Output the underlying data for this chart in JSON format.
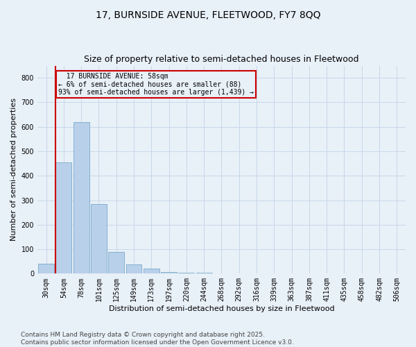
{
  "title1": "17, BURNSIDE AVENUE, FLEETWOOD, FY7 8QQ",
  "title2": "Size of property relative to semi-detached houses in Fleetwood",
  "xlabel": "Distribution of semi-detached houses by size in Fleetwood",
  "ylabel": "Number of semi-detached properties",
  "categories": [
    "30sqm",
    "54sqm",
    "78sqm",
    "101sqm",
    "125sqm",
    "149sqm",
    "173sqm",
    "197sqm",
    "220sqm",
    "244sqm",
    "268sqm",
    "292sqm",
    "316sqm",
    "339sqm",
    "363sqm",
    "387sqm",
    "411sqm",
    "435sqm",
    "458sqm",
    "482sqm",
    "506sqm"
  ],
  "values": [
    40,
    455,
    620,
    285,
    90,
    37,
    20,
    8,
    5,
    3,
    0,
    0,
    0,
    0,
    0,
    0,
    0,
    0,
    0,
    0,
    0
  ],
  "bar_color": "#b8d0ea",
  "bar_edge_color": "#7aaac8",
  "property_line_bin": 1,
  "property_label": "17 BURNSIDE AVENUE: 58sqm",
  "smaller_pct": "6%",
  "smaller_n": 88,
  "larger_pct": "93%",
  "larger_n": 1439,
  "annotation_box_color": "#cc0000",
  "line_color": "#cc0000",
  "ylim": [
    0,
    850
  ],
  "yticks": [
    0,
    100,
    200,
    300,
    400,
    500,
    600,
    700,
    800
  ],
  "grid_color": "#c8d8e8",
  "background_color": "#e8f0f8",
  "footer1": "Contains HM Land Registry data © Crown copyright and database right 2025.",
  "footer2": "Contains public sector information licensed under the Open Government Licence v3.0.",
  "title1_fontsize": 10,
  "title2_fontsize": 9,
  "axis_label_fontsize": 8,
  "tick_fontsize": 7,
  "footer_fontsize": 6.5
}
